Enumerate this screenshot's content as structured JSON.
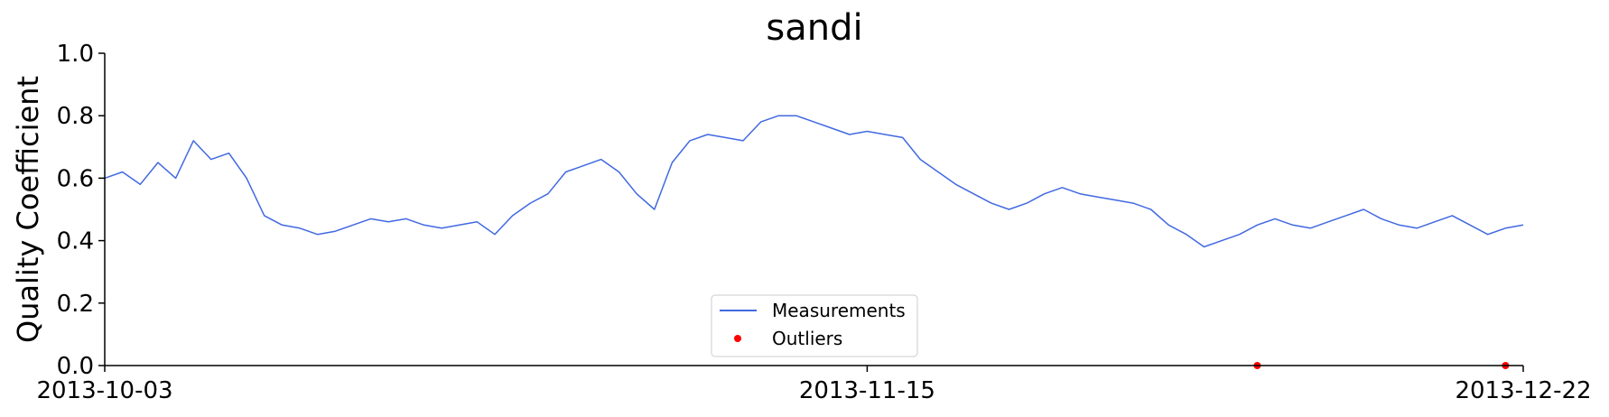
{
  "chart_data": {
    "type": "line",
    "title": "sandi",
    "xlabel": "",
    "ylabel": "Quality Coefficient",
    "ylim": [
      0.0,
      1.0
    ],
    "xlim": [
      "2013-10-03",
      "2013-12-22"
    ],
    "y_ticks": [
      "0.0",
      "0.2",
      "0.4",
      "0.6",
      "0.8",
      "1.0"
    ],
    "x_ticks": [
      "2013-10-03",
      "2013-11-15",
      "2013-12-22"
    ],
    "grid": false,
    "legend": {
      "placement": "bottom-center",
      "entries": [
        "Measurements",
        "Outliers"
      ]
    },
    "colors": {
      "measurements": "#4169E1",
      "outliers": "#FF0000"
    },
    "series": [
      {
        "name": "Measurements",
        "style": "line",
        "color": "#4169E1",
        "points": [
          [
            "2013-10-03",
            0.6
          ],
          [
            "2013-10-04",
            0.62
          ],
          [
            "2013-10-05",
            0.58
          ],
          [
            "2013-10-06",
            0.65
          ],
          [
            "2013-10-07",
            0.6
          ],
          [
            "2013-10-08",
            0.72
          ],
          [
            "2013-10-09",
            0.66
          ],
          [
            "2013-10-10",
            0.68
          ],
          [
            "2013-10-11",
            0.6
          ],
          [
            "2013-10-12",
            0.48
          ],
          [
            "2013-10-13",
            0.45
          ],
          [
            "2013-10-14",
            0.44
          ],
          [
            "2013-10-15",
            0.42
          ],
          [
            "2013-10-16",
            0.43
          ],
          [
            "2013-10-17",
            0.45
          ],
          [
            "2013-10-18",
            0.47
          ],
          [
            "2013-10-19",
            0.46
          ],
          [
            "2013-10-20",
            0.47
          ],
          [
            "2013-10-21",
            0.45
          ],
          [
            "2013-10-22",
            0.44
          ],
          [
            "2013-10-23",
            0.45
          ],
          [
            "2013-10-24",
            0.46
          ],
          [
            "2013-10-25",
            0.42
          ],
          [
            "2013-10-26",
            0.48
          ],
          [
            "2013-10-27",
            0.52
          ],
          [
            "2013-10-28",
            0.55
          ],
          [
            "2013-10-29",
            0.62
          ],
          [
            "2013-10-30",
            0.64
          ],
          [
            "2013-10-31",
            0.66
          ],
          [
            "2013-11-01",
            0.62
          ],
          [
            "2013-11-02",
            0.55
          ],
          [
            "2013-11-03",
            0.5
          ],
          [
            "2013-11-04",
            0.65
          ],
          [
            "2013-11-05",
            0.72
          ],
          [
            "2013-11-06",
            0.74
          ],
          [
            "2013-11-07",
            0.73
          ],
          [
            "2013-11-08",
            0.72
          ],
          [
            "2013-11-09",
            0.78
          ],
          [
            "2013-11-10",
            0.8
          ],
          [
            "2013-11-11",
            0.8
          ],
          [
            "2013-11-12",
            0.78
          ],
          [
            "2013-11-13",
            0.76
          ],
          [
            "2013-11-14",
            0.74
          ],
          [
            "2013-11-15",
            0.75
          ],
          [
            "2013-11-16",
            0.74
          ],
          [
            "2013-11-17",
            0.73
          ],
          [
            "2013-11-18",
            0.66
          ],
          [
            "2013-11-19",
            0.62
          ],
          [
            "2013-11-20",
            0.58
          ],
          [
            "2013-11-21",
            0.55
          ],
          [
            "2013-11-22",
            0.52
          ],
          [
            "2013-11-23",
            0.5
          ],
          [
            "2013-11-24",
            0.52
          ],
          [
            "2013-11-25",
            0.55
          ],
          [
            "2013-11-26",
            0.57
          ],
          [
            "2013-11-27",
            0.55
          ],
          [
            "2013-11-28",
            0.54
          ],
          [
            "2013-11-29",
            0.53
          ],
          [
            "2013-11-30",
            0.52
          ],
          [
            "2013-12-01",
            0.5
          ],
          [
            "2013-12-02",
            0.45
          ],
          [
            "2013-12-03",
            0.42
          ],
          [
            "2013-12-04",
            0.38
          ],
          [
            "2013-12-05",
            0.4
          ],
          [
            "2013-12-06",
            0.42
          ],
          [
            "2013-12-07",
            0.45
          ],
          [
            "2013-12-08",
            0.47
          ],
          [
            "2013-12-09",
            0.45
          ],
          [
            "2013-12-10",
            0.44
          ],
          [
            "2013-12-11",
            0.46
          ],
          [
            "2013-12-12",
            0.48
          ],
          [
            "2013-12-13",
            0.5
          ],
          [
            "2013-12-14",
            0.47
          ],
          [
            "2013-12-15",
            0.45
          ],
          [
            "2013-12-16",
            0.44
          ],
          [
            "2013-12-17",
            0.46
          ],
          [
            "2013-12-18",
            0.48
          ],
          [
            "2013-12-19",
            0.45
          ],
          [
            "2013-12-20",
            0.42
          ],
          [
            "2013-12-21",
            0.44
          ],
          [
            "2013-12-22",
            0.45
          ]
        ]
      },
      {
        "name": "Outliers",
        "style": "markers",
        "color": "#FF0000",
        "points": [
          [
            "2013-12-07",
            0.0
          ],
          [
            "2013-12-21",
            0.0
          ]
        ]
      }
    ]
  }
}
